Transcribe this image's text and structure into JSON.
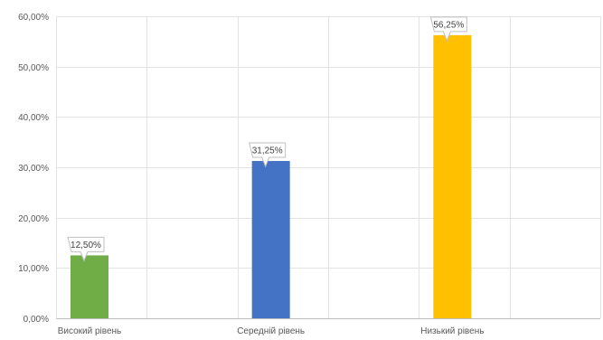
{
  "chart_data": {
    "type": "bar",
    "categories": [
      "Високий рівень",
      "Середній рівень",
      "Низький рівень"
    ],
    "values": [
      12.5,
      31.25,
      56.25
    ],
    "data_labels": [
      "12,50%",
      "31,25%",
      "56,25%"
    ],
    "colors": [
      "#70ad47",
      "#4472c4",
      "#ffc000"
    ],
    "title": "",
    "xlabel": "",
    "ylabel": "",
    "ylim": [
      0,
      60
    ],
    "yticks": [
      0,
      10,
      20,
      30,
      40,
      50,
      60
    ],
    "ytick_labels": [
      "0,00%",
      "10,00%",
      "20,00%",
      "30,00%",
      "40,00%",
      "50,00%",
      "60,00%"
    ],
    "grid": true,
    "legend": "none"
  }
}
